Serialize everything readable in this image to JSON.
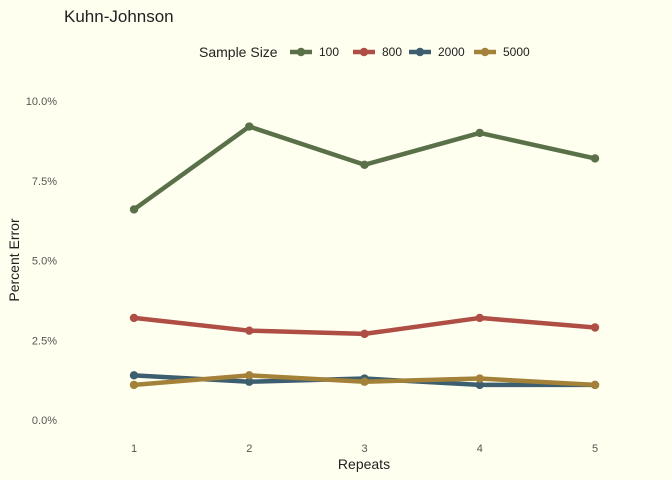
{
  "chart_data": {
    "type": "line",
    "title": "Kuhn-Johnson",
    "xlabel": "Repeats",
    "ylabel": "Percent Error",
    "x": [
      1,
      2,
      3,
      4,
      5
    ],
    "x_tick_labels": [
      "1",
      "2",
      "3",
      "4",
      "5"
    ],
    "ylim": [
      0,
      10
    ],
    "y_ticks": [
      0,
      2.5,
      5,
      7.5,
      10
    ],
    "y_tick_labels": [
      "0.0%",
      "2.5%",
      "5.0%",
      "7.5%",
      "10.0%"
    ],
    "grid": false,
    "legend": {
      "title": "Sample Size",
      "position": "top"
    },
    "series": [
      {
        "name": "100",
        "color": "#5A7049",
        "values": [
          6.6,
          9.2,
          8.0,
          9.0,
          8.2
        ]
      },
      {
        "name": "800",
        "color": "#AE4E45",
        "values": [
          3.2,
          2.8,
          2.7,
          3.2,
          2.9
        ]
      },
      {
        "name": "2000",
        "color": "#3D5E6F",
        "values": [
          1.4,
          1.2,
          1.3,
          1.1,
          1.1
        ]
      },
      {
        "name": "5000",
        "color": "#A38139",
        "values": [
          1.1,
          1.4,
          1.2,
          1.3,
          1.1
        ]
      }
    ]
  }
}
